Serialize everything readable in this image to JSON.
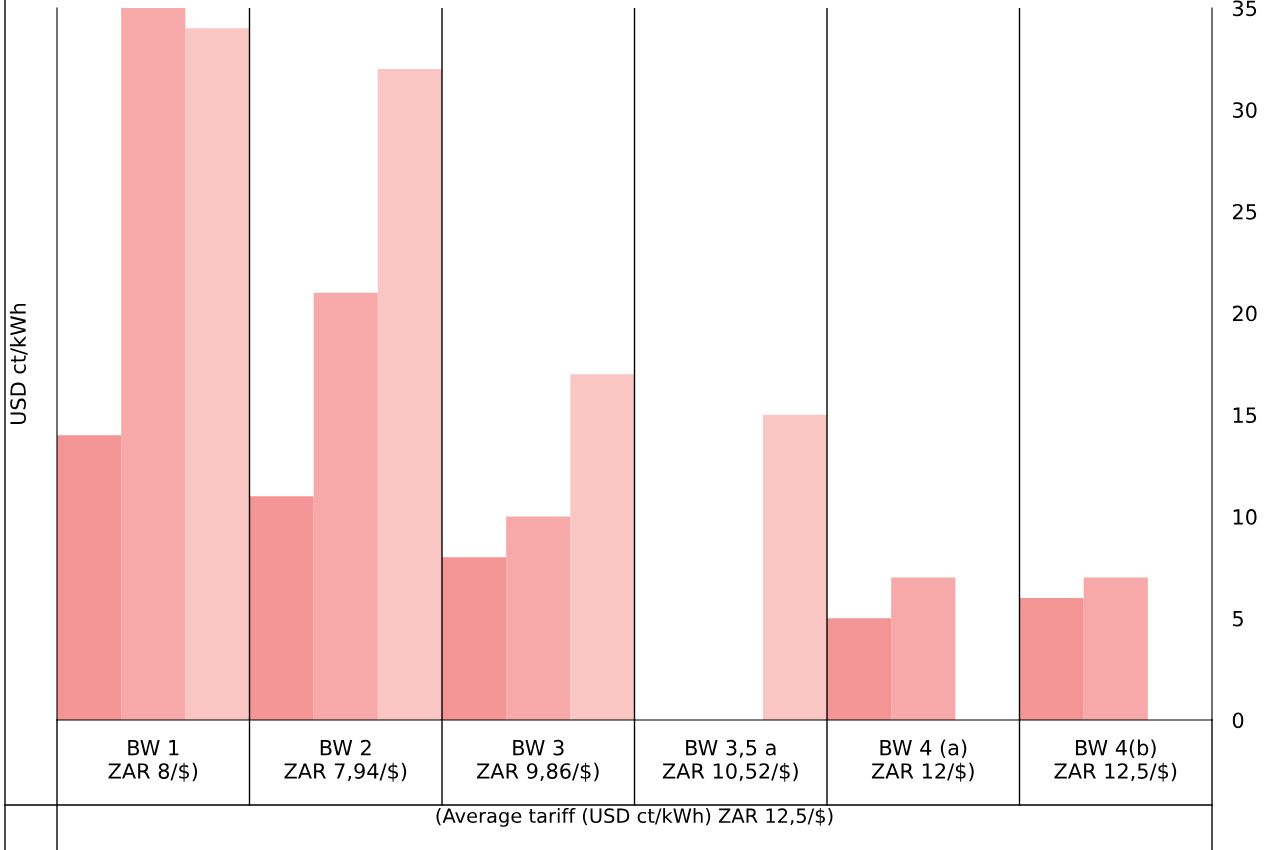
{
  "chart_data": {
    "type": "bar",
    "categories": [
      "BW 1\nZAR 8/$)",
      "BW 2\nZAR 7,94/$)",
      "BW 3\nZAR 9,86/$)",
      "BW 3,5 a\nZAR 10,52/$)",
      "BW 4 (a)\nZAR 12/$)",
      "BW 4(b)\nZAR 12,5/$)"
    ],
    "series": [
      {
        "color": "#f29594",
        "values": [
          14,
          11,
          8,
          null,
          5,
          6
        ]
      },
      {
        "color": "#f6a9a8",
        "values": [
          35,
          21,
          10,
          null,
          7,
          7
        ]
      },
      {
        "color": "#f9c6c4",
        "values": [
          34,
          32,
          17,
          15,
          null,
          null
        ]
      }
    ],
    "ylabel": "USD ct/kWh",
    "xlabel": "(Average tariff (USD ct/kWh) ZAR 12,5/$)",
    "ylim": [
      0,
      35
    ],
    "yticks": [
      0,
      5,
      10,
      15,
      20,
      25,
      30,
      35
    ],
    "grid": "x",
    "legend": false
  }
}
